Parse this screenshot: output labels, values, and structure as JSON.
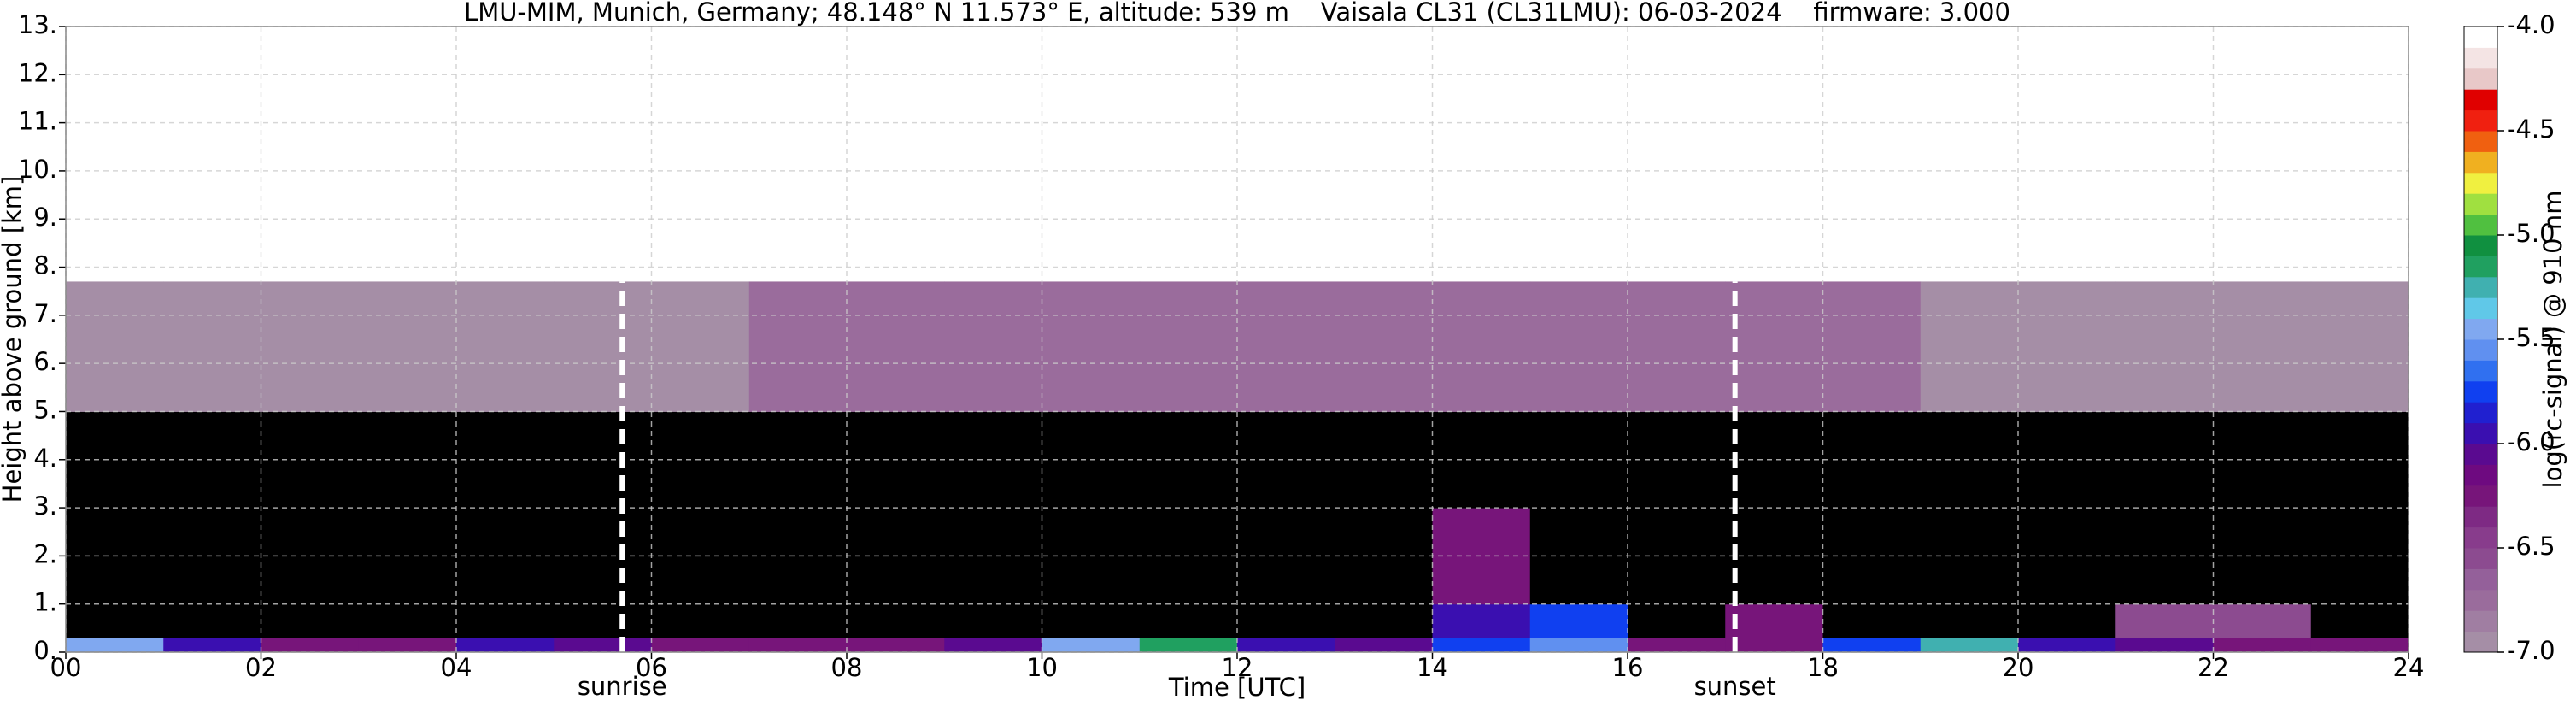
{
  "chart_data": {
    "type": "heatmap",
    "title": "LMU-MIM, Munich, Germany; 48.148° N 11.573° E, altitude: 539 m    Vaisala CL31 (CL31LMU): 06-03-2024    firmware: 3.000",
    "x_label": "Time [UTC]",
    "y_label": "Height above ground [km]",
    "xlim": [
      0,
      24
    ],
    "ylim": [
      0,
      13
    ],
    "xticks": [
      {
        "value": 0,
        "label": "00"
      },
      {
        "value": 2,
        "label": "02"
      },
      {
        "value": 4,
        "label": "04"
      },
      {
        "value": 6,
        "label": "06"
      },
      {
        "value": 8,
        "label": "08"
      },
      10,
      12,
      14,
      16,
      18,
      20,
      22,
      24
    ],
    "yticks": [
      {
        "value": 0,
        "label": "0."
      },
      {
        "value": 1,
        "label": "1."
      },
      {
        "value": 2,
        "label": "2."
      },
      {
        "value": 3,
        "label": "3."
      },
      {
        "value": 4,
        "label": "4."
      },
      {
        "value": 5,
        "label": "5."
      },
      {
        "value": 6,
        "label": "6."
      },
      {
        "value": 7,
        "label": "7."
      },
      {
        "value": 8,
        "label": "8."
      },
      {
        "value": 9,
        "label": "9."
      },
      {
        "value": 10,
        "label": "10."
      },
      {
        "value": 11,
        "label": "11."
      },
      {
        "value": 12,
        "label": "12."
      },
      {
        "value": 13,
        "label": "13."
      }
    ],
    "grid": true,
    "x_bins": [
      0,
      1,
      2,
      3,
      4,
      5,
      6,
      7,
      8,
      9,
      10,
      11,
      12,
      13,
      14,
      15,
      16,
      17,
      18,
      19,
      20,
      21,
      22,
      23,
      24
    ],
    "y_bins": [
      0,
      0.3,
      1,
      3,
      5,
      7.7
    ],
    "z": [
      [
        -5.5,
        -6.0,
        -6.2,
        -6.2,
        -6.0,
        -6.1,
        -6.2,
        -6.3,
        -6.2,
        -6.1,
        -5.4,
        -5.2,
        -6.0,
        -6.1,
        -5.8,
        -5.6,
        -6.3,
        -6.3,
        -5.8,
        -5.3,
        -6.0,
        -6.1,
        -6.2,
        -6.2
      ],
      [
        -7.5,
        -7.5,
        -7.6,
        -7.6,
        -7.6,
        -7.6,
        -7.6,
        -7.6,
        -7.6,
        -7.6,
        -7.4,
        -7.3,
        -7.5,
        -7.5,
        -6.0,
        -5.7,
        -7.5,
        -6.3,
        -7.4,
        -7.5,
        -7.5,
        -6.6,
        -6.6,
        -7.5
      ],
      [
        -7.6,
        -7.6,
        -7.6,
        -7.6,
        -7.6,
        -7.6,
        -7.6,
        -7.6,
        -7.6,
        -7.6,
        -7.6,
        -7.6,
        -7.6,
        -7.6,
        -6.2,
        -7.6,
        -7.6,
        -7.6,
        -7.6,
        -7.6,
        -7.6,
        -7.6,
        -7.6,
        -7.6
      ],
      [
        -7.3,
        -7.3,
        -7.3,
        -7.3,
        -7.3,
        -7.3,
        -7.3,
        -7.3,
        -7.2,
        -7.2,
        -7.2,
        -7.2,
        -7.2,
        -7.2,
        -7.2,
        -7.2,
        -7.2,
        -7.2,
        -7.2,
        -7.3,
        -7.3,
        -7.3,
        -7.3,
        -7.3
      ],
      [
        -6.9,
        -6.9,
        -6.9,
        -6.9,
        -6.9,
        -6.9,
        -6.9,
        -6.8,
        -6.8,
        -6.8,
        -6.8,
        -6.8,
        -6.8,
        -6.8,
        -6.8,
        -6.8,
        -6.8,
        -6.8,
        -6.8,
        -6.9,
        -6.9,
        -6.9,
        -6.9,
        -6.9
      ]
    ],
    "annotations": [
      {
        "text": "sunrise",
        "x": 5.7
      },
      {
        "text": "sunset",
        "x": 17.1
      }
    ],
    "colorbar": {
      "label": "log(rc-signal) @ 910 nm",
      "zlim": [
        -7,
        -4
      ],
      "ticks": [
        {
          "value": -4,
          "label": "-4.0"
        },
        {
          "value": -4.5,
          "label": "-4.5"
        },
        {
          "value": -5,
          "label": "-5.0"
        },
        {
          "value": -5.5,
          "label": "-5.5"
        },
        {
          "value": -6,
          "label": "-6.0"
        },
        {
          "value": -6.5,
          "label": "-6.5"
        },
        {
          "value": -7,
          "label": "-7.0"
        }
      ],
      "under_color": "#000000",
      "colors": [
        "#a58ea6",
        "#a07ea2",
        "#9a6c9c",
        "#94609a",
        "#8c4b90",
        "#883c8c",
        "#7e2a84",
        "#77157a",
        "#6e0a80",
        "#5a0a90",
        "#3a0fb0",
        "#2020d0",
        "#1040f0",
        "#3070f0",
        "#6090f0",
        "#80a8f0",
        "#60c8e8",
        "#40b0b0",
        "#20a060",
        "#109040",
        "#50c040",
        "#a0e040",
        "#f0f040",
        "#f0b020",
        "#f06010",
        "#f02010",
        "#e00000",
        "#e8c8c8",
        "#f4e4e4",
        "#ffffff"
      ]
    }
  }
}
